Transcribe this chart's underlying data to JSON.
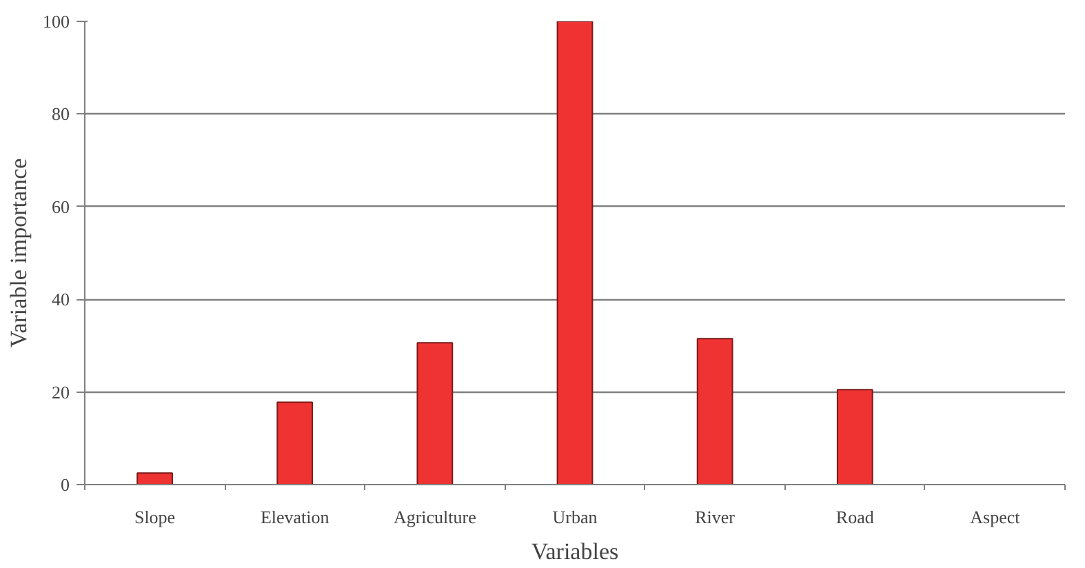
{
  "chart_data": {
    "type": "bar",
    "xlabel": "Variables",
    "ylabel": "Variable importance",
    "categories": [
      "Slope",
      "Elevation",
      "Agriculture",
      "Urban",
      "River",
      "Road",
      "Aspect"
    ],
    "values": [
      2.5,
      17.8,
      30.6,
      100,
      31.5,
      20.5,
      0
    ],
    "color": "#ef3333",
    "ylim": [
      0,
      100
    ],
    "yticks": [
      0,
      20,
      40,
      60,
      80,
      100
    ],
    "grid": "y"
  }
}
